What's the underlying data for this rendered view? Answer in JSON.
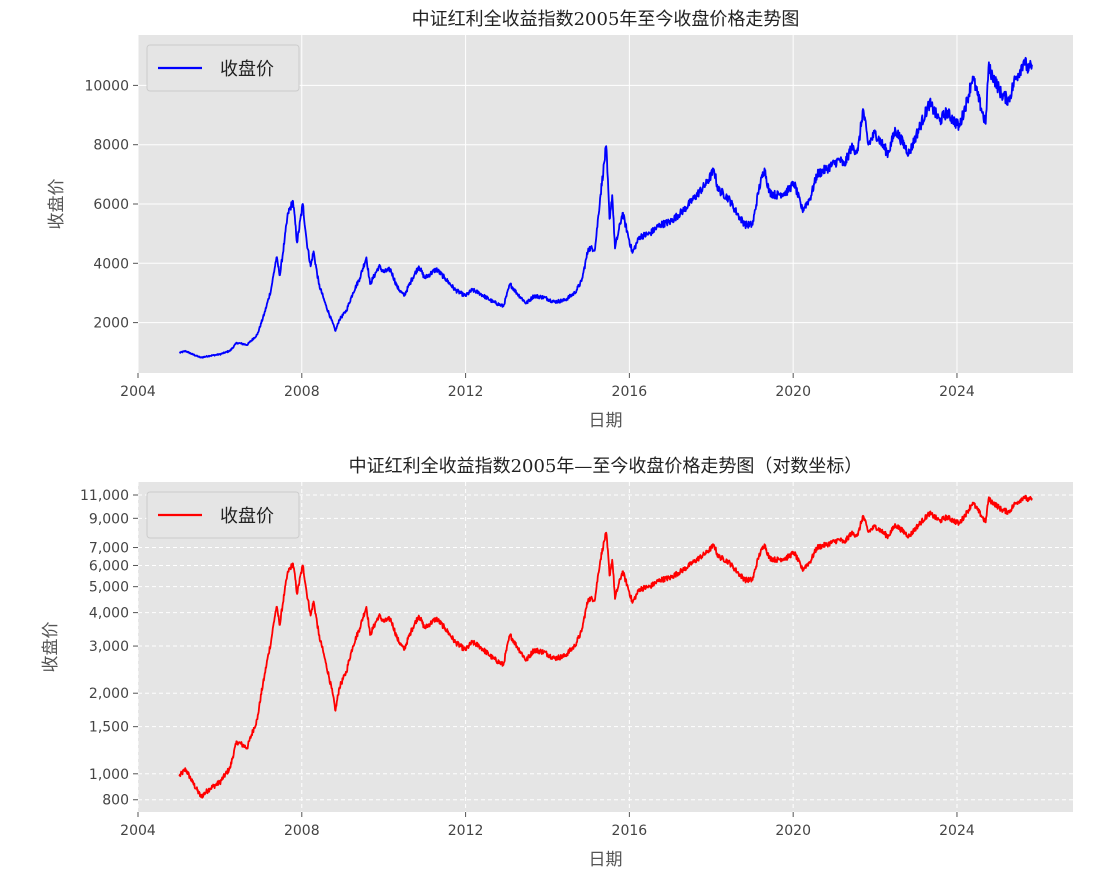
{
  "chart_data": [
    {
      "type": "line",
      "title": "中证红利全收益指数2005年至今收盘价格走势图",
      "xlabel": "日期",
      "ylabel": "收盘价",
      "yscale": "linear",
      "grid": true,
      "grid_style": "solid",
      "legend": "upper-left",
      "xlim": [
        "2004-01-01",
        "2026-11-01"
      ],
      "ylim": [
        300,
        11700
      ],
      "x_ticks": [
        "2004",
        "2008",
        "2012",
        "2016",
        "2020",
        "2024"
      ],
      "y_ticks": [
        "2000",
        "4000",
        "6000",
        "8000",
        "10000"
      ],
      "series": [
        {
          "name": "收盘价",
          "color": "#0000ff",
          "points": [
            [
              "2005-01-04",
              980
            ],
            [
              "2005-03-01",
              1040
            ],
            [
              "2005-05-01",
              930
            ],
            [
              "2005-07-15",
              820
            ],
            [
              "2005-10-01",
              880
            ],
            [
              "2006-01-01",
              930
            ],
            [
              "2006-04-01",
              1050
            ],
            [
              "2006-06-01",
              1320
            ],
            [
              "2006-09-01",
              1250
            ],
            [
              "2006-12-01",
              1600
            ],
            [
              "2007-02-01",
              2300
            ],
            [
              "2007-04-01",
              3100
            ],
            [
              "2007-05-20",
              4200
            ],
            [
              "2007-06-20",
              3600
            ],
            [
              "2007-08-01",
              4800
            ],
            [
              "2007-09-01",
              5700
            ],
            [
              "2007-10-15",
              6100
            ],
            [
              "2007-11-20",
              4700
            ],
            [
              "2008-01-10",
              6000
            ],
            [
              "2008-02-15",
              4700
            ],
            [
              "2008-03-20",
              3900
            ],
            [
              "2008-04-15",
              4400
            ],
            [
              "2008-06-01",
              3300
            ],
            [
              "2008-08-01",
              2600
            ],
            [
              "2008-10-28",
              1720
            ],
            [
              "2008-12-01",
              2100
            ],
            [
              "2009-02-01",
              2400
            ],
            [
              "2009-04-01",
              3000
            ],
            [
              "2009-06-01",
              3500
            ],
            [
              "2009-07-30",
              4200
            ],
            [
              "2009-09-01",
              3300
            ],
            [
              "2009-11-20",
              3900
            ],
            [
              "2010-01-01",
              3700
            ],
            [
              "2010-03-01",
              3800
            ],
            [
              "2010-05-01",
              3200
            ],
            [
              "2010-07-01",
              2900
            ],
            [
              "2010-09-01",
              3400
            ],
            [
              "2010-11-10",
              3900
            ],
            [
              "2011-01-01",
              3500
            ],
            [
              "2011-04-15",
              3800
            ],
            [
              "2011-07-01",
              3500
            ],
            [
              "2011-10-01",
              3100
            ],
            [
              "2011-12-30",
              2900
            ],
            [
              "2012-03-01",
              3100
            ],
            [
              "2012-05-01",
              3000
            ],
            [
              "2012-09-01",
              2700
            ],
            [
              "2012-12-03",
              2550
            ],
            [
              "2013-02-01",
              3300
            ],
            [
              "2013-04-01",
              3000
            ],
            [
              "2013-06-25",
              2650
            ],
            [
              "2013-09-01",
              2900
            ],
            [
              "2013-12-01",
              2850
            ],
            [
              "2014-03-01",
              2700
            ],
            [
              "2014-06-01",
              2750
            ],
            [
              "2014-09-01",
              3000
            ],
            [
              "2014-11-01",
              3400
            ],
            [
              "2014-12-31",
              4500
            ],
            [
              "2015-03-01",
              4500
            ],
            [
              "2015-04-15",
              6200
            ],
            [
              "2015-06-08",
              7950
            ],
            [
              "2015-07-08",
              5500
            ],
            [
              "2015-08-01",
              6300
            ],
            [
              "2015-08-26",
              4500
            ],
            [
              "2015-11-01",
              5700
            ],
            [
              "2016-01-28",
              4350
            ],
            [
              "2016-04-01",
              4900
            ],
            [
              "2016-07-01",
              5000
            ],
            [
              "2016-10-01",
              5300
            ],
            [
              "2017-01-01",
              5400
            ],
            [
              "2017-05-01",
              5800
            ],
            [
              "2017-08-01",
              6200
            ],
            [
              "2017-11-20",
              6700
            ],
            [
              "2018-01-25",
              7150
            ],
            [
              "2018-03-01",
              6500
            ],
            [
              "2018-06-01",
              6200
            ],
            [
              "2018-09-01",
              5600
            ],
            [
              "2018-10-30",
              5300
            ],
            [
              "2019-01-04",
              5300
            ],
            [
              "2019-03-01",
              6500
            ],
            [
              "2019-04-20",
              7200
            ],
            [
              "2019-06-01",
              6400
            ],
            [
              "2019-08-01",
              6300
            ],
            [
              "2019-11-01",
              6400
            ],
            [
              "2020-01-10",
              6700
            ],
            [
              "2020-03-23",
              5800
            ],
            [
              "2020-06-01",
              6200
            ],
            [
              "2020-08-01",
              7000
            ],
            [
              "2020-11-01",
              7200
            ],
            [
              "2021-02-18",
              7500
            ],
            [
              "2021-04-01",
              7300
            ],
            [
              "2021-06-01",
              7900
            ],
            [
              "2021-08-01",
              7800
            ],
            [
              "2021-09-15",
              9200
            ],
            [
              "2021-11-01",
              8000
            ],
            [
              "2022-01-01",
              8400
            ],
            [
              "2022-04-26",
              7700
            ],
            [
              "2022-07-01",
              8500
            ],
            [
              "2022-10-31",
              7700
            ],
            [
              "2023-01-01",
              8300
            ],
            [
              "2023-05-01",
              9400
            ],
            [
              "2023-08-01",
              8800
            ],
            [
              "2023-10-01",
              9100
            ],
            [
              "2024-01-22",
              8600
            ],
            [
              "2024-04-01",
              9500
            ],
            [
              "2024-05-20",
              10300
            ],
            [
              "2024-07-01",
              9700
            ],
            [
              "2024-09-13",
              8700
            ],
            [
              "2024-10-08",
              10600
            ],
            [
              "2024-12-01",
              10200
            ],
            [
              "2025-02-01",
              9700
            ],
            [
              "2025-04-08",
              9500
            ],
            [
              "2025-06-01",
              10200
            ],
            [
              "2025-07-15",
              10500
            ],
            [
              "2025-08-20",
              10850
            ],
            [
              "2025-10-01",
              10500
            ],
            [
              "2025-10-31",
              10700
            ]
          ]
        }
      ]
    },
    {
      "type": "line",
      "title": "中证红利全收益指数2005年—至今收盘价格走势图（对数坐标）",
      "xlabel": "日期",
      "ylabel": "收盘价",
      "yscale": "log",
      "grid": true,
      "grid_style": "dashed",
      "legend": "upper-left",
      "xlim": [
        "2004-01-01",
        "2026-11-01"
      ],
      "ylim": [
        720,
        12300
      ],
      "x_ticks": [
        "2004",
        "2008",
        "2012",
        "2016",
        "2020",
        "2024"
      ],
      "y_ticks": [
        {
          "value": 800,
          "label": "800"
        },
        {
          "value": 1000,
          "label": "1,000"
        },
        {
          "value": 1500,
          "label": "1,500"
        },
        {
          "value": 2000,
          "label": "2,000"
        },
        {
          "value": 3000,
          "label": "3,000"
        },
        {
          "value": 4000,
          "label": "4,000"
        },
        {
          "value": 5000,
          "label": "5,000"
        },
        {
          "value": 6000,
          "label": "6,000"
        },
        {
          "value": 7000,
          "label": "7,000"
        },
        {
          "value": 9000,
          "label": "9,000"
        },
        {
          "value": 11000,
          "label": "11,000"
        }
      ],
      "series": [
        {
          "name": "收盘价",
          "color": "#ff0000",
          "points": "same-as-chart-1"
        }
      ]
    }
  ]
}
